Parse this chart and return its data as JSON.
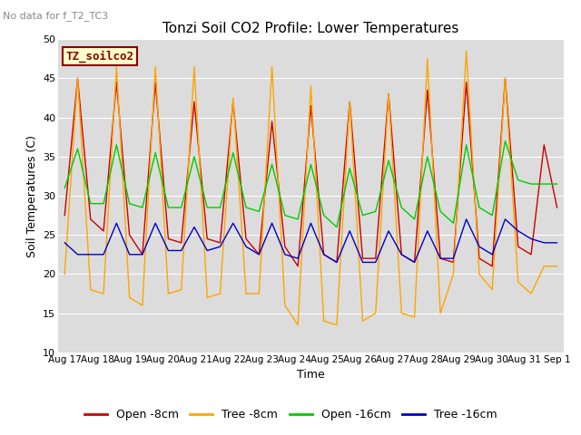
{
  "title": "Tonzi Soil CO2 Profile: Lower Temperatures",
  "subtitle": "No data for f_T2_TC3",
  "ylabel": "Soil Temperatures (C)",
  "xlabel": "Time",
  "legend_title": "TZ_soilco2",
  "ylim": [
    10,
    50
  ],
  "background_color": "#dcdcdc",
  "tick_labels": [
    "Aug 17",
    "Aug 18",
    "Aug 19",
    "Aug 20",
    "Aug 21",
    "Aug 22",
    "Aug 23",
    "Aug 24",
    "Aug 25",
    "Aug 26",
    "Aug 27",
    "Aug 28",
    "Aug 29",
    "Aug 30",
    "Aug 31",
    "Sep 1"
  ],
  "series": {
    "Open -8cm": {
      "color": "#cc0000",
      "data": [
        27.5,
        45.0,
        27.0,
        25.5,
        44.5,
        25.0,
        22.5,
        44.5,
        24.5,
        24.0,
        42.0,
        24.5,
        24.0,
        42.0,
        24.5,
        22.5,
        39.5,
        23.5,
        21.0,
        41.5,
        22.5,
        21.5,
        42.0,
        22.0,
        22.0,
        43.0,
        22.5,
        21.5,
        43.5,
        22.0,
        21.5,
        44.5,
        22.0,
        21.0,
        45.0,
        23.5,
        22.5,
        36.5,
        28.5
      ]
    },
    "Tree -8cm": {
      "color": "#ffa500",
      "data": [
        20.0,
        45.0,
        18.0,
        17.5,
        46.5,
        17.0,
        16.0,
        46.5,
        17.5,
        18.0,
        46.5,
        17.0,
        17.5,
        42.5,
        17.5,
        17.5,
        46.5,
        16.0,
        13.5,
        44.0,
        14.0,
        13.5,
        42.0,
        14.0,
        15.0,
        43.0,
        15.0,
        14.5,
        47.5,
        15.0,
        20.0,
        48.5,
        20.0,
        18.0,
        45.0,
        19.0,
        17.5,
        21.0,
        21.0
      ]
    },
    "Open -16cm": {
      "color": "#00cc00",
      "data": [
        31.0,
        36.0,
        29.0,
        29.0,
        36.5,
        29.0,
        28.5,
        35.5,
        28.5,
        28.5,
        35.0,
        28.5,
        28.5,
        35.5,
        28.5,
        28.0,
        34.0,
        27.5,
        27.0,
        34.0,
        27.5,
        26.0,
        33.5,
        27.5,
        28.0,
        34.5,
        28.5,
        27.0,
        35.0,
        28.0,
        26.5,
        36.5,
        28.5,
        27.5,
        37.0,
        32.0,
        31.5,
        31.5,
        31.5
      ]
    },
    "Tree -16cm": {
      "color": "#0000cc",
      "data": [
        24.0,
        22.5,
        22.5,
        22.5,
        26.5,
        22.5,
        22.5,
        26.5,
        23.0,
        23.0,
        26.0,
        23.0,
        23.5,
        26.5,
        23.5,
        22.5,
        26.5,
        22.5,
        22.0,
        26.5,
        22.5,
        21.5,
        25.5,
        21.5,
        21.5,
        25.5,
        22.5,
        21.5,
        25.5,
        22.0,
        22.0,
        27.0,
        23.5,
        22.5,
        27.0,
        25.5,
        24.5,
        24.0,
        24.0
      ]
    }
  },
  "n_days": 16,
  "subtitle_fontsize": 8,
  "title_fontsize": 11,
  "ylabel_fontsize": 9,
  "xlabel_fontsize": 9,
  "tick_fontsize": 7.5,
  "legend_fontsize": 9
}
